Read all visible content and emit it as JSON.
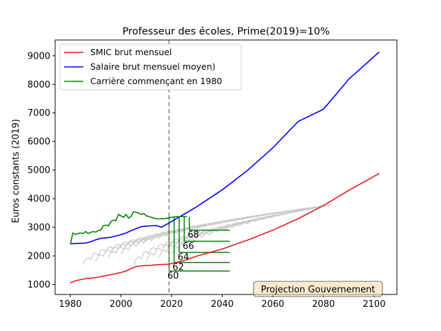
{
  "chart_data": {
    "type": "line",
    "title": "Professeur des écoles, Prime(2019)=10%",
    "xlabel": "",
    "ylabel": "Euros constants (2019)",
    "xlim": [
      1974,
      2109
    ],
    "ylim": [
      650,
      9550
    ],
    "xticks": [
      1980,
      2000,
      2020,
      2040,
      2060,
      2080,
      2100
    ],
    "yticks": [
      1000,
      2000,
      3000,
      4000,
      5000,
      6000,
      7000,
      8000,
      9000
    ],
    "legend_position": "upper-left",
    "reference_line": {
      "x": 2019,
      "style": "dashed",
      "color": "#808080"
    },
    "series": [
      {
        "name": "SMIC brut mensuel",
        "color": "#e41a1c",
        "points": [
          [
            1980,
            1050
          ],
          [
            1982,
            1130
          ],
          [
            1984,
            1165
          ],
          [
            1986,
            1205
          ],
          [
            1988,
            1220
          ],
          [
            1990,
            1240
          ],
          [
            1992,
            1275
          ],
          [
            1994,
            1305
          ],
          [
            1996,
            1340
          ],
          [
            1998,
            1380
          ],
          [
            2000,
            1420
          ],
          [
            2002,
            1470
          ],
          [
            2004,
            1555
          ],
          [
            2006,
            1625
          ],
          [
            2008,
            1650
          ],
          [
            2010,
            1660
          ],
          [
            2012,
            1670
          ],
          [
            2014,
            1690
          ],
          [
            2016,
            1700
          ],
          [
            2018,
            1705
          ],
          [
            2019,
            1710
          ],
          [
            2025,
            1840
          ],
          [
            2030,
            1990
          ],
          [
            2040,
            2240
          ],
          [
            2050,
            2550
          ],
          [
            2060,
            2900
          ],
          [
            2070,
            3300
          ],
          [
            2080,
            3760
          ],
          [
            2090,
            4290
          ],
          [
            2102,
            4880
          ]
        ]
      },
      {
        "name": "Salaire brut mensuel moyen)",
        "color": "#0000ff",
        "points": [
          [
            1980,
            2420
          ],
          [
            1982,
            2430
          ],
          [
            1984,
            2440
          ],
          [
            1986,
            2450
          ],
          [
            1988,
            2490
          ],
          [
            1990,
            2560
          ],
          [
            1992,
            2610
          ],
          [
            1994,
            2630
          ],
          [
            1996,
            2650
          ],
          [
            1998,
            2700
          ],
          [
            2000,
            2740
          ],
          [
            2002,
            2800
          ],
          [
            2004,
            2880
          ],
          [
            2006,
            2950
          ],
          [
            2008,
            3020
          ],
          [
            2010,
            3040
          ],
          [
            2012,
            3050
          ],
          [
            2014,
            3060
          ],
          [
            2016,
            3000
          ],
          [
            2018,
            3100
          ],
          [
            2019,
            3150
          ],
          [
            2025,
            3460
          ],
          [
            2030,
            3720
          ],
          [
            2040,
            4310
          ],
          [
            2050,
            4990
          ],
          [
            2060,
            5780
          ],
          [
            2070,
            6700
          ],
          [
            2080,
            7130
          ],
          [
            2090,
            8180
          ],
          [
            2102,
            9130
          ]
        ]
      },
      {
        "name": "Carrière commençant en 1980",
        "color": "#008000",
        "points": [
          [
            1980,
            2400
          ],
          [
            1981,
            2800
          ],
          [
            1982,
            2750
          ],
          [
            1983,
            2780
          ],
          [
            1984,
            2800
          ],
          [
            1985,
            2780
          ],
          [
            1986,
            2850
          ],
          [
            1987,
            2780
          ],
          [
            1988,
            2820
          ],
          [
            1989,
            2850
          ],
          [
            1990,
            2830
          ],
          [
            1991,
            2880
          ],
          [
            1992,
            2900
          ],
          [
            1993,
            3050
          ],
          [
            1994,
            3080
          ],
          [
            1995,
            3050
          ],
          [
            1996,
            3200
          ],
          [
            1997,
            3250
          ],
          [
            1998,
            3230
          ],
          [
            1999,
            3450
          ],
          [
            2000,
            3400
          ],
          [
            2001,
            3350
          ],
          [
            2002,
            3450
          ],
          [
            2003,
            3320
          ],
          [
            2004,
            3380
          ],
          [
            2005,
            3550
          ],
          [
            2006,
            3520
          ],
          [
            2007,
            3500
          ],
          [
            2008,
            3450
          ],
          [
            2009,
            3480
          ],
          [
            2010,
            3400
          ],
          [
            2011,
            3380
          ],
          [
            2012,
            3350
          ],
          [
            2013,
            3320
          ],
          [
            2014,
            3300
          ],
          [
            2015,
            3290
          ],
          [
            2016,
            3300
          ],
          [
            2017,
            3300
          ],
          [
            2018,
            3310
          ],
          [
            2019,
            3330
          ],
          [
            2020,
            3350
          ],
          [
            2021,
            3360
          ],
          [
            2022,
            3370
          ],
          [
            2023,
            3370
          ],
          [
            2024,
            3370
          ],
          [
            2025,
            3370
          ],
          [
            2026,
            3370
          ]
        ]
      }
    ],
    "retirement_levels": [
      {
        "label": "60",
        "age": 60,
        "year": 2020,
        "pension": 1470
      },
      {
        "label": "62",
        "age": 62,
        "year": 2022,
        "pension": 1770
      },
      {
        "label": "64",
        "age": 64,
        "year": 2024,
        "pension": 2120
      },
      {
        "label": "66",
        "age": 66,
        "year": 2026,
        "pension": 2510
      },
      {
        "label": "68",
        "age": 68,
        "year": 2028,
        "pension": 2900
      }
    ],
    "retirement_end_year": 2043,
    "gray_careers": {
      "color": "#c8c8c8",
      "start_years": [
        1985,
        1990,
        1995,
        2000,
        2005,
        2010,
        2015,
        2020
      ],
      "end_level": 3780,
      "end_year": 2083
    },
    "annotation_box": "Projection Gouvernement"
  }
}
